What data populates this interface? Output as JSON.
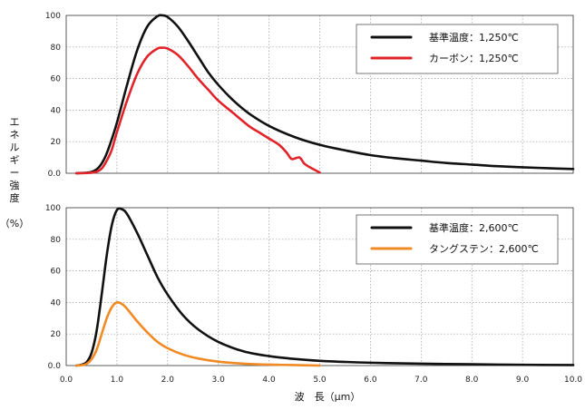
{
  "chart_data": {
    "type": "line",
    "ylabel_lines": [
      "エ",
      "ネ",
      "ル",
      "ギ",
      "ー",
      "強",
      "度",
      "",
      "（%）"
    ],
    "xlabel": "波　長（μm）",
    "x_ticks": [
      "0.0",
      "1.0",
      "2.0",
      "3.0",
      "4.0",
      "5.0",
      "6.0",
      "7.0",
      "8.0",
      "9.0",
      "10.0"
    ],
    "xlim": [
      0,
      10
    ],
    "grid": true,
    "panels": [
      {
        "ylim": [
          0,
          100
        ],
        "y_ticks": [
          "0.0",
          "20",
          "40",
          "60",
          "80",
          "100"
        ],
        "legend_position": "top-right",
        "series": [
          {
            "name": "基準温度：1,250℃",
            "color": "#111111",
            "x": [
              0.2,
              0.45,
              0.55,
              0.65,
              0.75,
              0.85,
              1.0,
              1.2,
              1.4,
              1.6,
              1.8,
              1.9,
              2.0,
              2.2,
              2.4,
              2.6,
              2.8,
              3.0,
              3.3,
              3.6,
              4.0,
              4.5,
              5.0,
              5.5,
              6.0,
              6.5,
              7.0,
              7.5,
              8.0,
              8.5,
              9.0,
              9.5,
              10.0
            ],
            "y": [
              0,
              0.5,
              1.5,
              4,
              9,
              17,
              32,
              56,
              78,
              93,
              99.5,
              100,
              99,
              93,
              84,
              74,
              64,
              56,
              46,
              38,
              30,
              23,
              18,
              14.5,
              11.5,
              9.5,
              8,
              6.5,
              5.5,
              4.5,
              3.8,
              3.2,
              2.7
            ]
          },
          {
            "name": "カーボン：1,250℃",
            "color": "#e0242a",
            "x": [
              0.2,
              0.5,
              0.6,
              0.7,
              0.8,
              0.9,
              1.0,
              1.2,
              1.4,
              1.6,
              1.8,
              1.9,
              2.0,
              2.2,
              2.4,
              2.6,
              2.8,
              3.0,
              3.3,
              3.6,
              3.8,
              4.0,
              4.2,
              4.35,
              4.45,
              4.6,
              4.7,
              4.85,
              5.0
            ],
            "y": [
              0,
              0.3,
              1,
              3,
              8,
              15,
              26,
              46,
              63,
              74,
              79,
              79.5,
              79,
              75,
              68,
              60,
              53,
              46,
              38,
              30,
              26,
              22,
              18,
              13,
              9,
              10,
              6,
              3,
              0.5
            ]
          }
        ]
      },
      {
        "ylim": [
          0,
          100
        ],
        "y_ticks": [
          "0.0",
          "20",
          "40",
          "60",
          "80",
          "100"
        ],
        "legend_position": "top-right",
        "series": [
          {
            "name": "基準温度：2,600℃",
            "color": "#111111",
            "x": [
              0.2,
              0.3,
              0.4,
              0.5,
              0.6,
              0.7,
              0.8,
              0.9,
              1.0,
              1.1,
              1.2,
              1.4,
              1.6,
              1.8,
              2.0,
              2.3,
              2.6,
              3.0,
              3.5,
              4.0,
              4.5,
              5.0,
              6.0,
              7.0,
              8.0,
              9.0,
              10.0
            ],
            "y": [
              0,
              0.5,
              2,
              8,
              22,
              45,
              70,
              89,
              98.5,
              99,
              96,
              84,
              70,
              56,
              45,
              32,
              23,
              15,
              9,
              6,
              4.2,
              3,
              1.8,
              1.2,
              0.8,
              0.5,
              0.3
            ]
          },
          {
            "name": "タングステン：2,600℃",
            "color": "#f08a24",
            "x": [
              0.2,
              0.3,
              0.4,
              0.5,
              0.6,
              0.7,
              0.8,
              0.9,
              1.0,
              1.1,
              1.2,
              1.4,
              1.6,
              1.8,
              2.0,
              2.3,
              2.6,
              3.0,
              3.5,
              4.0,
              4.5,
              5.0
            ],
            "y": [
              0,
              0.2,
              1,
              4,
              10,
              20,
              30,
              37,
              40,
              39,
              36,
              28,
              21,
              15,
              11,
              7,
              4.5,
              2.5,
              1.2,
              0.6,
              0.3,
              0
            ]
          }
        ]
      }
    ]
  }
}
